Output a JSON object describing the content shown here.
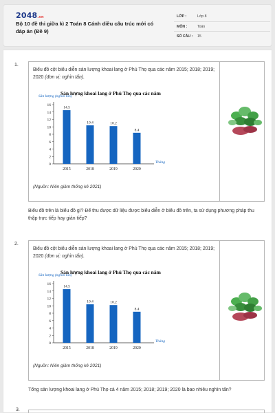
{
  "header": {
    "logo_main": "2048",
    "logo_tld": ".vn",
    "title": "Bộ 10 đề thi giữa kì 2 Toán 8 Cánh diều cấu trúc mới có đáp án (Đề 9)",
    "meta": [
      {
        "key": "LỚP :",
        "value": "Lớp 8"
      },
      {
        "key": "MÔN :",
        "value": "Toán"
      },
      {
        "key": "SỐ CÂU :",
        "value": "15"
      }
    ]
  },
  "questions": [
    {
      "number": "1.",
      "text": "Biểu đồ cột biểu diễn sản lượng khoai lang ở Phú Thọ qua các năm 2015; 2018; 2019; 2020",
      "unit_note": "(đơn vị: nghìn tấn).",
      "source": "(Nguồn: Niên giám thống kê 2021)",
      "prompt": "Biểu đồ trên là biểu đồ gì? Để thu được dữ liệu được biểu diễn ở biểu đồ trên, ta sử dụng phương pháp thu thập trực tiếp hay gián tiếp?",
      "plant_icon": "sweet-potato-plant",
      "chart_data": {
        "type": "bar",
        "title": "Sản lượng khoai lang ở Phú Thọ qua các năm",
        "ylabel": "Sản lượng (nghìn tấn)",
        "xlabel": "Tháng",
        "categories": [
          "2015",
          "2018",
          "2019",
          "2020"
        ],
        "values": [
          14.5,
          10.4,
          10.2,
          8.4
        ],
        "value_labels": [
          "14.5",
          "10.4",
          "10.2",
          "8.4"
        ],
        "yticks": [
          "0",
          "2",
          "4",
          "6",
          "8",
          "10",
          "12",
          "14",
          "16"
        ],
        "ylim": [
          0,
          16
        ],
        "grid": false,
        "bar_color": "#1565c0"
      }
    },
    {
      "number": "2.",
      "text": "Biểu đồ cột biểu diễn sản lượng khoai lang ở Phú Thọ qua các năm 2015; 2018; 2019; 2020",
      "unit_note": "(đơn vị: nghìn tấn).",
      "source": "(Nguồn: Niên giám thống kê 2021)",
      "prompt": "Tổng sản lượng khoai lang ở Phú Thọ cả 4 năm 2015; 2018; 2019; 2020 là bao nhiêu nghìn tấn?",
      "plant_icon": "sweet-potato-plant",
      "chart_data": {
        "type": "bar",
        "title": "Sản lượng khoai lang ở Phú Thọ qua các năm",
        "ylabel": "Sản lượng (nghìn tấn)",
        "xlabel": "Tháng",
        "categories": [
          "2015",
          "2018",
          "2019",
          "2020"
        ],
        "values": [
          14.5,
          10.4,
          10.2,
          8.4
        ],
        "value_labels": [
          "14.5",
          "10.4",
          "10.2",
          "8.4"
        ],
        "yticks": [
          "0",
          "2",
          "4",
          "6",
          "8",
          "10",
          "12",
          "14",
          "16"
        ],
        "ylim": [
          0,
          16
        ],
        "grid": false,
        "bar_color": "#1565c0"
      }
    }
  ],
  "next_question_number": "3."
}
